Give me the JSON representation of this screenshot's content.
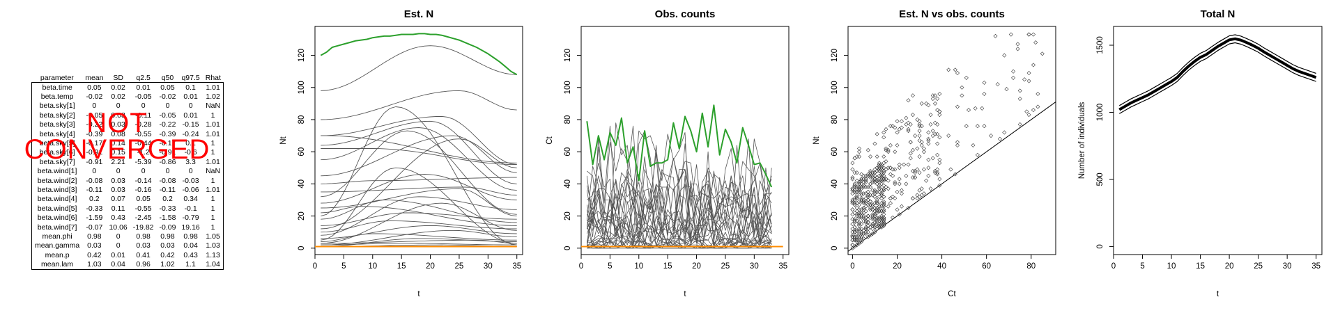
{
  "summary_table": {
    "headers": [
      "parameter",
      "mean",
      "SD",
      "q2.5",
      "q50",
      "q97.5",
      "Rhat"
    ],
    "rows": [
      [
        "beta.time",
        "0.05",
        "0.02",
        "0.01",
        "0.05",
        "0.1",
        "1.01"
      ],
      [
        "beta.temp",
        "-0.02",
        "0.02",
        "-0.05",
        "-0.02",
        "0.01",
        "1.02"
      ],
      [
        "beta.sky[1]",
        "0",
        "0",
        "0",
        "0",
        "0",
        "NaN"
      ],
      [
        "beta.sky[2]",
        "-0.05",
        "0.03",
        "-0.11",
        "-0.05",
        "0.01",
        "1"
      ],
      [
        "beta.sky[3]",
        "-0.22",
        "0.03",
        "-0.28",
        "-0.22",
        "-0.15",
        "1.01"
      ],
      [
        "beta.sky[4]",
        "-0.39",
        "0.08",
        "-0.55",
        "-0.39",
        "-0.24",
        "1.01"
      ],
      [
        "beta.sky[5]",
        "-0.17",
        "0.14",
        "-0.44",
        "-0.17",
        "0.1",
        "1"
      ],
      [
        "beta.sky[6]",
        "-0.91",
        "0.15",
        "-1.2",
        "-0.91",
        "-0.6",
        "1"
      ],
      [
        "beta.sky[7]",
        "-0.91",
        "2.21",
        "-5.39",
        "-0.86",
        "3.3",
        "1.01"
      ],
      [
        "beta.wind[1]",
        "0",
        "0",
        "0",
        "0",
        "0",
        "NaN"
      ],
      [
        "beta.wind[2]",
        "-0.08",
        "0.03",
        "-0.14",
        "-0.08",
        "-0.03",
        "1"
      ],
      [
        "beta.wind[3]",
        "-0.11",
        "0.03",
        "-0.16",
        "-0.11",
        "-0.06",
        "1.01"
      ],
      [
        "beta.wind[4]",
        "0.2",
        "0.07",
        "0.05",
        "0.2",
        "0.34",
        "1"
      ],
      [
        "beta.wind[5]",
        "-0.33",
        "0.11",
        "-0.55",
        "-0.33",
        "-0.1",
        "1"
      ],
      [
        "beta.wind[6]",
        "-1.59",
        "0.43",
        "-2.45",
        "-1.58",
        "-0.79",
        "1"
      ],
      [
        "beta.wind[7]",
        "-0.07",
        "10.06",
        "-19.82",
        "-0.09",
        "19.16",
        "1"
      ],
      [
        "mean.phi",
        "0.98",
        "0",
        "0.98",
        "0.98",
        "0.98",
        "1.05"
      ],
      [
        "mean.gamma",
        "0.03",
        "0",
        "0.03",
        "0.03",
        "0.04",
        "1.03"
      ],
      [
        "mean.p",
        "0.42",
        "0.01",
        "0.41",
        "0.42",
        "0.43",
        "1.13"
      ],
      [
        "mean.lam",
        "1.03",
        "0.04",
        "0.96",
        "1.02",
        "1.1",
        "1.04"
      ]
    ],
    "stamp_line1": "NOT",
    "stamp_line2": "CONVERGED",
    "stamp_color": "#ff0000"
  },
  "chart_data": [
    {
      "type": "line",
      "title": "Est. N",
      "xlabel": "t",
      "ylabel": "Nt",
      "xlim": [
        0,
        36
      ],
      "ylim": [
        -4,
        138
      ],
      "xticks": [
        0,
        5,
        10,
        15,
        20,
        25,
        30,
        35
      ],
      "yticks": [
        0,
        20,
        40,
        60,
        80,
        100,
        120
      ],
      "grid": false,
      "x": [
        1,
        2,
        3,
        4,
        5,
        6,
        7,
        8,
        9,
        10,
        11,
        12,
        13,
        14,
        15,
        16,
        17,
        18,
        19,
        20,
        21,
        22,
        23,
        24,
        25,
        26,
        27,
        28,
        29,
        30,
        31,
        32,
        33,
        34,
        35
      ],
      "highlight_series": {
        "color": "#2ca02c",
        "values": [
          120,
          122,
          125,
          126,
          127,
          128,
          129,
          129.5,
          130,
          131,
          131.5,
          132,
          132,
          132.5,
          133,
          133,
          133,
          133.5,
          133.5,
          133,
          133,
          132.5,
          131.5,
          130.5,
          129.5,
          128,
          126.5,
          125,
          123,
          121,
          118.5,
          116,
          113,
          110,
          108
        ]
      },
      "baseline_series": {
        "color": "#ff8c00",
        "value": 1
      },
      "background_series_color": "#555555",
      "background_series": [
        {
          "start": 98,
          "peak": 126,
          "peak_t": 20,
          "end": 108
        },
        {
          "start": 80,
          "peak": 98,
          "peak_t": 25,
          "end": 86
        },
        {
          "start": 70,
          "peak": 82,
          "peak_t": 22,
          "end": 52
        },
        {
          "start": 64,
          "peak": 79,
          "peak_t": 20,
          "end": 40
        },
        {
          "start": 55,
          "peak": 75,
          "peak_t": 18,
          "end": 36
        },
        {
          "start": 20,
          "peak": 88,
          "peak_t": 14,
          "end": 2
        },
        {
          "start": 32,
          "peak": 73,
          "peak_t": 16,
          "end": 21
        },
        {
          "start": 12,
          "peak": 68,
          "peak_t": 25,
          "end": 50
        },
        {
          "start": 45,
          "peak": 70,
          "peak_t": 24,
          "end": 47
        },
        {
          "start": 62,
          "peak": 62,
          "peak_t": 10,
          "end": 52
        },
        {
          "start": 70,
          "peak": 70,
          "peak_t": 2,
          "end": 53
        },
        {
          "start": 5,
          "peak": 50,
          "peak_t": 14,
          "end": 3
        },
        {
          "start": 28,
          "peak": 46,
          "peak_t": 19,
          "end": 30
        },
        {
          "start": 40,
          "peak": 42,
          "peak_t": 10,
          "end": 44
        },
        {
          "start": 35,
          "peak": 38,
          "peak_t": 26,
          "end": 33
        },
        {
          "start": 8,
          "peak": 32,
          "peak_t": 18,
          "end": 24
        },
        {
          "start": 25,
          "peak": 37,
          "peak_t": 25,
          "end": 20
        },
        {
          "start": 18,
          "peak": 30,
          "peak_t": 12,
          "end": 16
        },
        {
          "start": 3,
          "peak": 28,
          "peak_t": 22,
          "end": 11
        },
        {
          "start": 22,
          "peak": 26,
          "peak_t": 8,
          "end": 14
        },
        {
          "start": 14,
          "peak": 22,
          "peak_t": 16,
          "end": 18
        },
        {
          "start": 10,
          "peak": 17,
          "peak_t": 13,
          "end": 12
        },
        {
          "start": 6,
          "peak": 14,
          "peak_t": 20,
          "end": 9
        },
        {
          "start": 2,
          "peak": 11,
          "peak_t": 24,
          "end": 7
        },
        {
          "start": 4,
          "peak": 9,
          "peak_t": 10,
          "end": 5
        },
        {
          "start": 1,
          "peak": 6,
          "peak_t": 18,
          "end": 4
        },
        {
          "start": 3,
          "peak": 5,
          "peak_t": 28,
          "end": 3
        },
        {
          "start": 2,
          "peak": 3,
          "peak_t": 15,
          "end": 2
        },
        {
          "start": 1,
          "peak": 2,
          "peak_t": 22,
          "end": 1
        }
      ]
    },
    {
      "type": "line",
      "title": "Obs. counts",
      "xlabel": "t",
      "ylabel": "Ct",
      "xlim": [
        0,
        36
      ],
      "ylim": [
        -4,
        138
      ],
      "xticks": [
        0,
        5,
        10,
        15,
        20,
        25,
        30,
        35
      ],
      "yticks": [
        0,
        20,
        40,
        60,
        80,
        100,
        120
      ],
      "grid": false,
      "x": [
        1,
        2,
        3,
        4,
        5,
        6,
        7,
        8,
        9,
        10,
        11,
        12,
        13,
        14,
        15,
        16,
        17,
        18,
        19,
        20,
        21,
        22,
        23,
        24,
        25,
        26,
        27,
        28,
        29,
        30,
        31,
        32,
        33
      ],
      "highlight_series": {
        "color": "#2ca02c",
        "values": [
          79,
          52,
          70,
          55,
          72,
          64,
          81,
          53,
          63,
          42,
          73,
          51,
          53,
          53,
          55,
          78,
          62,
          82,
          73,
          60,
          84,
          63,
          89,
          58,
          74,
          66,
          53,
          75,
          64,
          52,
          53,
          46,
          38
        ]
      },
      "baseline_series": {
        "color": "#ff8c00",
        "value": 1
      },
      "background_series_color": "#555555",
      "background_series_count": 30,
      "background_series_max": 88
    },
    {
      "type": "scatter",
      "title": "Est. N vs obs. counts",
      "xlabel": "Ct",
      "ylabel": "Nt",
      "xlim": [
        -2,
        91
      ],
      "ylim": [
        -4,
        138
      ],
      "xticks": [
        0,
        20,
        40,
        60,
        80
      ],
      "yticks": [
        0,
        20,
        40,
        60,
        80,
        100,
        120
      ],
      "grid": false,
      "reference_line": "y = x",
      "point_count": 620,
      "point_style": "open diamond"
    },
    {
      "type": "line",
      "title": "Total N",
      "xlabel": "t",
      "ylabel": "Number of individuals",
      "xlim": [
        0,
        36
      ],
      "ylim": [
        -60,
        1640
      ],
      "xticks": [
        0,
        5,
        10,
        15,
        20,
        25,
        30,
        35
      ],
      "yticks": [
        0,
        500,
        1000,
        1500
      ],
      "grid": false,
      "x": [
        1,
        2,
        3,
        4,
        5,
        6,
        7,
        8,
        9,
        10,
        11,
        12,
        13,
        14,
        15,
        16,
        17,
        18,
        19,
        20,
        21,
        22,
        23,
        24,
        25,
        26,
        27,
        28,
        29,
        30,
        31,
        32,
        33,
        34,
        35
      ],
      "series": [
        {
          "role": "mean",
          "values": [
            1020,
            1045,
            1070,
            1090,
            1110,
            1130,
            1155,
            1180,
            1205,
            1230,
            1260,
            1305,
            1345,
            1380,
            1410,
            1430,
            1460,
            1490,
            1515,
            1540,
            1548,
            1538,
            1520,
            1500,
            1478,
            1450,
            1425,
            1400,
            1375,
            1350,
            1325,
            1305,
            1290,
            1275,
            1260
          ]
        },
        {
          "role": "lower",
          "values": [
            990,
            1015,
            1040,
            1060,
            1080,
            1100,
            1125,
            1150,
            1175,
            1200,
            1230,
            1275,
            1315,
            1350,
            1380,
            1400,
            1430,
            1460,
            1485,
            1510,
            1518,
            1508,
            1490,
            1470,
            1448,
            1420,
            1395,
            1370,
            1345,
            1320,
            1295,
            1275,
            1260,
            1245,
            1230
          ]
        },
        {
          "role": "upper",
          "values": [
            1050,
            1075,
            1100,
            1120,
            1140,
            1160,
            1185,
            1210,
            1235,
            1260,
            1290,
            1335,
            1375,
            1410,
            1440,
            1460,
            1490,
            1520,
            1545,
            1570,
            1578,
            1568,
            1550,
            1530,
            1508,
            1480,
            1455,
            1430,
            1405,
            1380,
            1355,
            1335,
            1320,
            1305,
            1290
          ]
        }
      ]
    }
  ]
}
